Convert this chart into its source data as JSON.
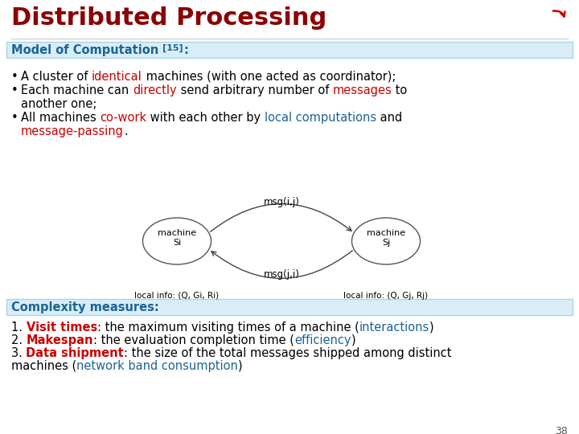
{
  "title": "Distributed Processing",
  "title_color": "#8B0000",
  "title_fontsize": 22,
  "bg_color": "#ffffff",
  "section1_text": "Model of Computation ",
  "section1_ref": "[15]",
  "section1_ref_suffix": ":",
  "section1_color": "#1a6496",
  "section1_bg": "#d9edf7",
  "section1_border": "#aad4e8",
  "section2_text": "Complexity measures:",
  "section2_color": "#1a6496",
  "section2_bg": "#d9edf7",
  "section2_border": "#aad4e8",
  "page_number": "38",
  "diagram": {
    "machine_i_label": "machine\nSi",
    "machine_j_label": "machine\nSj",
    "msg_ij": "msg(i,j)",
    "msg_ji": "msg(j,i)",
    "local_i": "local info: (Q, Gi, Ri)",
    "local_j": "local info: (Q, Gj, Rj)"
  },
  "red": "#cc0000",
  "blue": "#1a6496",
  "black": "#000000",
  "gray": "#555555"
}
